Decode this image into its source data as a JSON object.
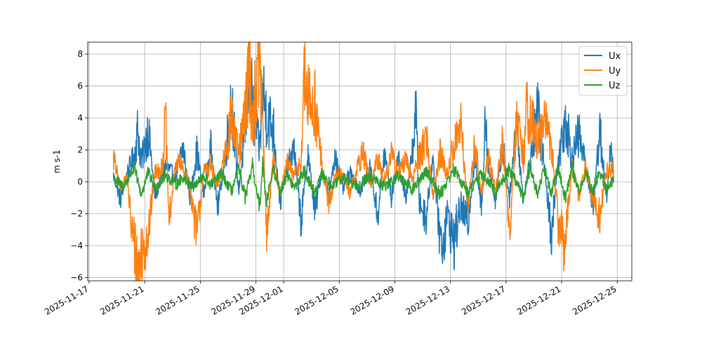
{
  "chart_data": {
    "type": "line",
    "title": "",
    "xlabel": "",
    "ylabel": "m s-1",
    "xlim": [
      "2025-11-16T21:36",
      "2025-12-26T01:12"
    ],
    "ylim": [
      -6.2,
      8.75
    ],
    "x_ticks": [
      "2025-11-17",
      "2025-11-21",
      "2025-11-25",
      "2025-11-29",
      "2025-12-01",
      "2025-12-05",
      "2025-12-09",
      "2025-12-13",
      "2025-12-17",
      "2025-12-21",
      "2025-12-25"
    ],
    "y_ticks": [
      -6,
      -4,
      -2,
      0,
      2,
      4,
      6,
      8
    ],
    "grid": true,
    "legend": "top-right",
    "series": [
      {
        "name": "Ux",
        "color": "#1f77b4",
        "points": [
          [
            "2025-11-18T18:00",
            0.4
          ],
          [
            "2025-11-19T06:00",
            -1.1
          ],
          [
            "2025-11-19T18:00",
            0.6
          ],
          [
            "2025-11-20T06:00",
            1.6
          ],
          [
            "2025-11-20T12:00",
            3.3
          ],
          [
            "2025-11-20T18:00",
            1.2
          ],
          [
            "2025-11-21T06:00",
            3.3
          ],
          [
            "2025-11-21T18:00",
            -0.9
          ],
          [
            "2025-11-22T12:00",
            1.0
          ],
          [
            "2025-11-23T06:00",
            0.3
          ],
          [
            "2025-11-23T18:00",
            2.2
          ],
          [
            "2025-11-24T06:00",
            -0.9
          ],
          [
            "2025-11-24T18:00",
            1.9
          ],
          [
            "2025-11-25T06:00",
            -0.8
          ],
          [
            "2025-11-25T18:00",
            2.1
          ],
          [
            "2025-11-26T06:00",
            -1.6
          ],
          [
            "2025-11-26T18:00",
            1.2
          ],
          [
            "2025-11-27T06:00",
            5.4
          ],
          [
            "2025-11-27T18:00",
            -0.6
          ],
          [
            "2025-11-28T06:00",
            3.3
          ],
          [
            "2025-11-28T12:00",
            7.1
          ],
          [
            "2025-11-28T18:00",
            4.8
          ],
          [
            "2025-11-29T06:00",
            2.0
          ],
          [
            "2025-11-29T12:00",
            5.8
          ],
          [
            "2025-11-29T18:00",
            4.2
          ],
          [
            "2025-11-30T06:00",
            3.4
          ],
          [
            "2025-11-30T18:00",
            -1.3
          ],
          [
            "2025-12-01T06:00",
            0.8
          ],
          [
            "2025-12-01T18:00",
            2.1
          ],
          [
            "2025-12-02T06:00",
            -2.5
          ],
          [
            "2025-12-02T18:00",
            1.8
          ],
          [
            "2025-12-03T06:00",
            -1.9
          ],
          [
            "2025-12-03T18:00",
            0.8
          ],
          [
            "2025-12-04T06:00",
            -0.8
          ],
          [
            "2025-12-04T18:00",
            1.7
          ],
          [
            "2025-12-05T06:00",
            -0.5
          ],
          [
            "2025-12-05T18:00",
            0.6
          ],
          [
            "2025-12-06T12:00",
            -0.6
          ],
          [
            "2025-12-07T06:00",
            0.9
          ],
          [
            "2025-12-07T18:00",
            -2.2
          ],
          [
            "2025-12-08T06:00",
            1.8
          ],
          [
            "2025-12-08T18:00",
            -1.0
          ],
          [
            "2025-12-09T06:00",
            1.6
          ],
          [
            "2025-12-09T18:00",
            -1.2
          ],
          [
            "2025-12-10T06:00",
            1.7
          ],
          [
            "2025-12-10T12:00",
            4.7
          ],
          [
            "2025-12-10T18:00",
            -1.3
          ],
          [
            "2025-12-11T06:00",
            -2.2
          ],
          [
            "2025-12-11T18:00",
            1.5
          ],
          [
            "2025-12-12T06:00",
            -3.5
          ],
          [
            "2025-12-12T12:00",
            -3.8
          ],
          [
            "2025-12-12T18:00",
            -2.0
          ],
          [
            "2025-12-13T06:00",
            -3.8
          ],
          [
            "2025-12-13T18:00",
            -1.5
          ],
          [
            "2025-12-14T06:00",
            -2.6
          ],
          [
            "2025-12-14T18:00",
            1.5
          ],
          [
            "2025-12-15T06:00",
            -1.7
          ],
          [
            "2025-12-15T12:00",
            4.6
          ],
          [
            "2025-12-15T18:00",
            0.8
          ],
          [
            "2025-12-16T06:00",
            -1.1
          ],
          [
            "2025-12-16T18:00",
            2.4
          ],
          [
            "2025-12-17T06:00",
            -1.0
          ],
          [
            "2025-12-17T18:00",
            3.6
          ],
          [
            "2025-12-18T06:00",
            -1.2
          ],
          [
            "2025-12-18T18:00",
            1.5
          ],
          [
            "2025-12-19T06:00",
            4.6
          ],
          [
            "2025-12-19T18:00",
            1.0
          ],
          [
            "2025-12-20T06:00",
            -3.2
          ],
          [
            "2025-12-20T18:00",
            1.2
          ],
          [
            "2025-12-21T06:00",
            4.2
          ],
          [
            "2025-12-21T18:00",
            1.5
          ],
          [
            "2025-12-22T06:00",
            3.0
          ],
          [
            "2025-12-22T18:00",
            0.9
          ],
          [
            "2025-12-23T06:00",
            -1.6
          ],
          [
            "2025-12-23T18:00",
            3.4
          ],
          [
            "2025-12-24T06:00",
            -1.3
          ],
          [
            "2025-12-24T12:00",
            2.4
          ],
          [
            "2025-12-24T18:00",
            0.3
          ]
        ]
      },
      {
        "name": "Uy",
        "color": "#ff7f0e",
        "points": [
          [
            "2025-11-18T18:00",
            1.5
          ],
          [
            "2025-11-19T06:00",
            -0.4
          ],
          [
            "2025-11-19T18:00",
            0.3
          ],
          [
            "2025-11-20T00:00",
            -2.6
          ],
          [
            "2025-11-20T06:00",
            -4.0
          ],
          [
            "2025-11-20T12:00",
            -5.6
          ],
          [
            "2025-11-20T18:00",
            -4.5
          ],
          [
            "2025-11-21T06:00",
            -3.2
          ],
          [
            "2025-11-21T18:00",
            0.6
          ],
          [
            "2025-11-22T06:00",
            0.9
          ],
          [
            "2025-11-22T12:00",
            4.0
          ],
          [
            "2025-11-22T18:00",
            -2.5
          ],
          [
            "2025-11-23T06:00",
            1.3
          ],
          [
            "2025-11-23T18:00",
            0.8
          ],
          [
            "2025-11-24T06:00",
            -0.3
          ],
          [
            "2025-11-24T18:00",
            -3.4
          ],
          [
            "2025-11-25T06:00",
            0.6
          ],
          [
            "2025-11-25T18:00",
            1.1
          ],
          [
            "2025-11-26T06:00",
            -0.4
          ],
          [
            "2025-11-26T18:00",
            1.8
          ],
          [
            "2025-11-27T06:00",
            3.9
          ],
          [
            "2025-11-27T18:00",
            1.6
          ],
          [
            "2025-11-28T06:00",
            4.2
          ],
          [
            "2025-11-28T12:00",
            7.9
          ],
          [
            "2025-11-28T18:00",
            3.5
          ],
          [
            "2025-11-29T06:00",
            8.1
          ],
          [
            "2025-11-29T12:00",
            3.6
          ],
          [
            "2025-11-29T18:00",
            -3.4
          ],
          [
            "2025-11-30T06:00",
            1.3
          ],
          [
            "2025-11-30T18:00",
            -0.7
          ],
          [
            "2025-12-01T06:00",
            1.1
          ],
          [
            "2025-12-01T18:00",
            0.4
          ],
          [
            "2025-12-02T06:00",
            1.3
          ],
          [
            "2025-12-02T12:00",
            6.4
          ],
          [
            "2025-12-02T18:00",
            5.0
          ],
          [
            "2025-12-03T06:00",
            4.9
          ],
          [
            "2025-12-03T18:00",
            1.0
          ],
          [
            "2025-12-04T06:00",
            -1.4
          ],
          [
            "2025-12-04T18:00",
            0.5
          ],
          [
            "2025-12-05T06:00",
            0.4
          ],
          [
            "2025-12-05T18:00",
            -0.6
          ],
          [
            "2025-12-06T06:00",
            0.7
          ],
          [
            "2025-12-06T18:00",
            1.9
          ],
          [
            "2025-12-07T06:00",
            -0.3
          ],
          [
            "2025-12-07T18:00",
            1.4
          ],
          [
            "2025-12-08T06:00",
            0.2
          ],
          [
            "2025-12-08T18:00",
            1.6
          ],
          [
            "2025-12-09T06:00",
            0.6
          ],
          [
            "2025-12-09T18:00",
            1.3
          ],
          [
            "2025-12-10T06:00",
            0.2
          ],
          [
            "2025-12-10T18:00",
            1.6
          ],
          [
            "2025-12-11T06:00",
            2.9
          ],
          [
            "2025-12-11T18:00",
            -0.8
          ],
          [
            "2025-12-12T06:00",
            1.8
          ],
          [
            "2025-12-12T18:00",
            0.4
          ],
          [
            "2025-12-13T06:00",
            2.3
          ],
          [
            "2025-12-13T18:00",
            3.5
          ],
          [
            "2025-12-14T06:00",
            -1.6
          ],
          [
            "2025-12-14T18:00",
            2.3
          ],
          [
            "2025-12-15T06:00",
            -0.7
          ],
          [
            "2025-12-15T18:00",
            1.6
          ],
          [
            "2025-12-16T06:00",
            -0.6
          ],
          [
            "2025-12-16T18:00",
            2.6
          ],
          [
            "2025-12-17T06:00",
            -3.2
          ],
          [
            "2025-12-17T18:00",
            3.8
          ],
          [
            "2025-12-18T06:00",
            1.4
          ],
          [
            "2025-12-18T12:00",
            4.7
          ],
          [
            "2025-12-18T18:00",
            4.2
          ],
          [
            "2025-12-19T06:00",
            2.3
          ],
          [
            "2025-12-19T18:00",
            3.7
          ],
          [
            "2025-12-20T06:00",
            2.6
          ],
          [
            "2025-12-20T18:00",
            -2.5
          ],
          [
            "2025-12-21T06:00",
            -4.0
          ],
          [
            "2025-12-21T18:00",
            0.9
          ],
          [
            "2025-12-22T06:00",
            -0.8
          ],
          [
            "2025-12-22T18:00",
            0.9
          ],
          [
            "2025-12-23T06:00",
            -1.2
          ],
          [
            "2025-12-23T18:00",
            -2.2
          ],
          [
            "2025-12-24T06:00",
            0.8
          ],
          [
            "2025-12-24T18:00",
            0.7
          ]
        ]
      },
      {
        "name": "Uz",
        "color": "#2ca02c",
        "points": [
          [
            "2025-11-18T18:00",
            0.2
          ],
          [
            "2025-11-19T12:00",
            -0.3
          ],
          [
            "2025-11-20T06:00",
            0.9
          ],
          [
            "2025-11-20T18:00",
            -0.8
          ],
          [
            "2025-11-21T06:00",
            0.6
          ],
          [
            "2025-11-21T18:00",
            -0.4
          ],
          [
            "2025-11-22T12:00",
            0.4
          ],
          [
            "2025-11-23T06:00",
            -0.2
          ],
          [
            "2025-11-23T18:00",
            0.3
          ],
          [
            "2025-11-24T12:00",
            -0.3
          ],
          [
            "2025-11-25T06:00",
            0.3
          ],
          [
            "2025-11-25T18:00",
            -0.2
          ],
          [
            "2025-11-26T12:00",
            0.5
          ],
          [
            "2025-11-27T06:00",
            -0.6
          ],
          [
            "2025-11-27T18:00",
            0.8
          ],
          [
            "2025-11-28T06:00",
            -1.0
          ],
          [
            "2025-11-28T18:00",
            1.0
          ],
          [
            "2025-11-29T06:00",
            -1.7
          ],
          [
            "2025-11-29T12:00",
            1.2
          ],
          [
            "2025-11-29T18:00",
            -1.2
          ],
          [
            "2025-11-30T06:00",
            0.8
          ],
          [
            "2025-11-30T18:00",
            -0.6
          ],
          [
            "2025-12-01T06:00",
            0.5
          ],
          [
            "2025-12-01T18:00",
            -0.4
          ],
          [
            "2025-12-02T12:00",
            0.7
          ],
          [
            "2025-12-03T06:00",
            -0.8
          ],
          [
            "2025-12-03T18:00",
            0.5
          ],
          [
            "2025-12-04T12:00",
            -0.3
          ],
          [
            "2025-12-05T06:00",
            0.3
          ],
          [
            "2025-12-06T06:00",
            -0.2
          ],
          [
            "2025-12-07T06:00",
            0.3
          ],
          [
            "2025-12-08T06:00",
            -0.3
          ],
          [
            "2025-12-09T06:00",
            0.4
          ],
          [
            "2025-12-10T06:00",
            -0.5
          ],
          [
            "2025-12-11T06:00",
            0.7
          ],
          [
            "2025-12-12T06:00",
            -0.8
          ],
          [
            "2025-12-13T06:00",
            0.8
          ],
          [
            "2025-12-14T06:00",
            -0.7
          ],
          [
            "2025-12-15T06:00",
            0.5
          ],
          [
            "2025-12-16T06:00",
            -0.6
          ],
          [
            "2025-12-17T06:00",
            0.8
          ],
          [
            "2025-12-18T06:00",
            -0.9
          ],
          [
            "2025-12-18T18:00",
            1.0
          ],
          [
            "2025-12-19T06:00",
            -0.8
          ],
          [
            "2025-12-19T18:00",
            0.9
          ],
          [
            "2025-12-20T06:00",
            -0.7
          ],
          [
            "2025-12-20T18:00",
            1.0
          ],
          [
            "2025-12-21T06:00",
            -1.0
          ],
          [
            "2025-12-21T18:00",
            0.8
          ],
          [
            "2025-12-22T06:00",
            -0.7
          ],
          [
            "2025-12-22T18:00",
            0.7
          ],
          [
            "2025-12-23T06:00",
            -0.6
          ],
          [
            "2025-12-23T18:00",
            0.6
          ],
          [
            "2025-12-24T06:00",
            -0.5
          ],
          [
            "2025-12-24T18:00",
            0.2
          ]
        ]
      }
    ]
  }
}
